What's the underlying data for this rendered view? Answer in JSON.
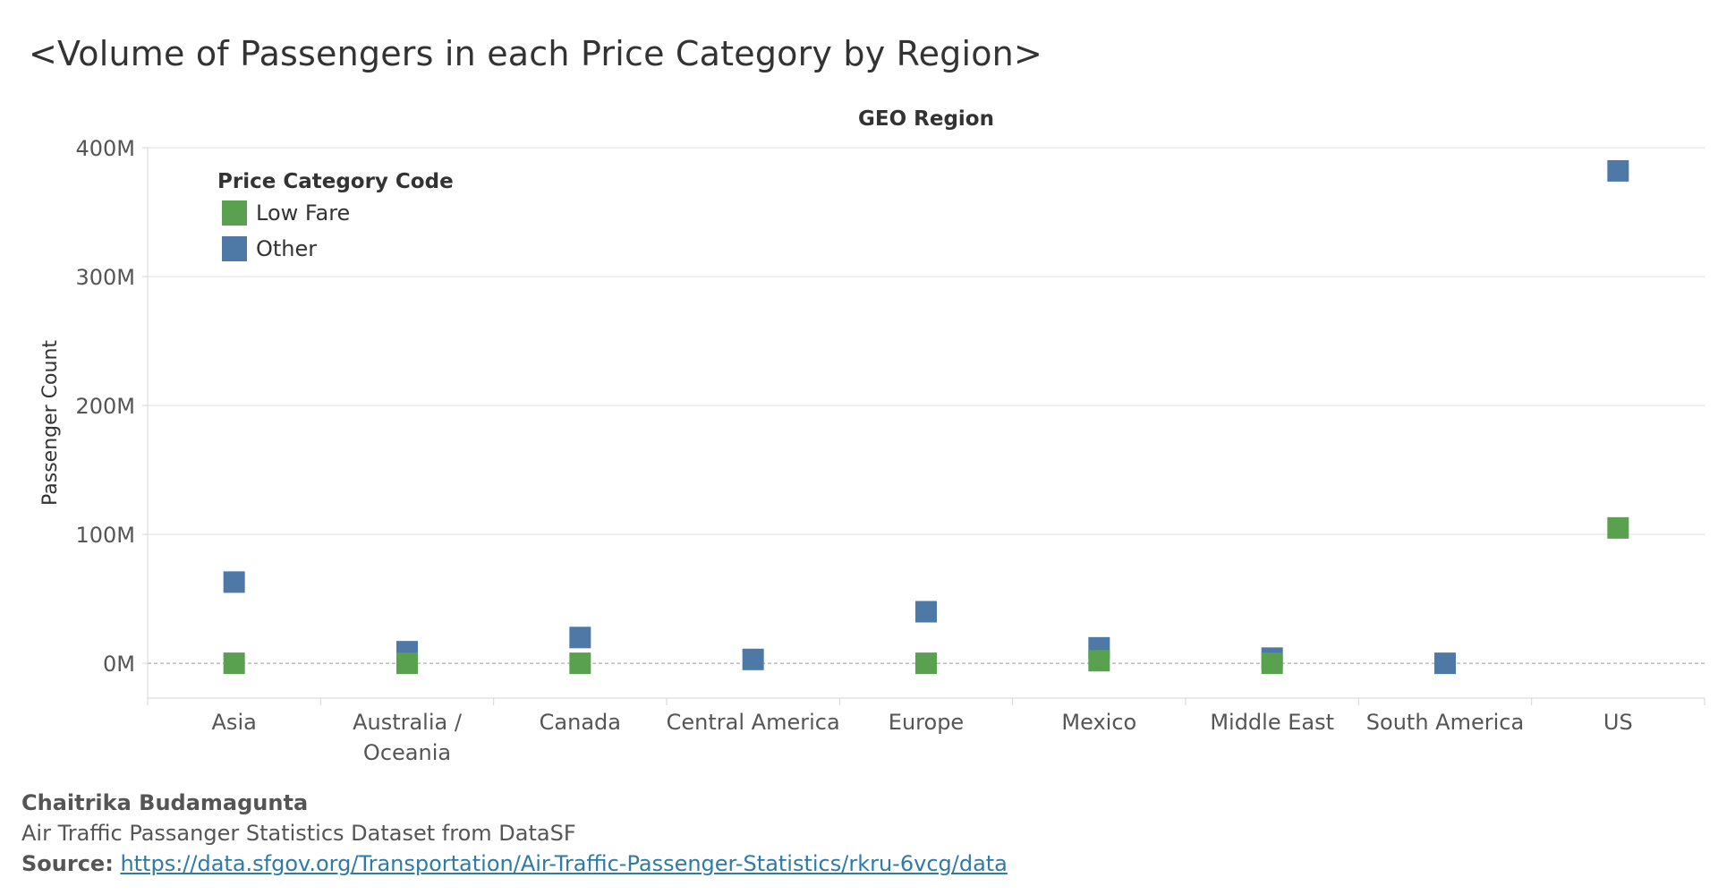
{
  "title": "<Volume of Passengers in each Price Category by Region>",
  "chart_data": {
    "type": "scatter",
    "column_header": "GEO Region",
    "ylabel": "Passenger Count",
    "ylim": [
      -27000000,
      400000000
    ],
    "yticks": [
      0,
      100000000,
      200000000,
      300000000,
      400000000
    ],
    "ytick_labels": [
      "0M",
      "100M",
      "200M",
      "300M",
      "400M"
    ],
    "grid": true,
    "zero_line": "dashed",
    "legend_placement": "top-left",
    "legend_title": "Price Category Code",
    "categories": [
      "Asia",
      "Australia / Oceania",
      "Canada",
      "Central America",
      "Europe",
      "Mexico",
      "Middle East",
      "South America",
      "US"
    ],
    "category_label_lines": [
      [
        "Asia"
      ],
      [
        "Australia /",
        "Oceania"
      ],
      [
        "Canada"
      ],
      [
        "Central America"
      ],
      [
        "Europe"
      ],
      [
        "Mexico"
      ],
      [
        "Middle East"
      ],
      [
        "South America"
      ],
      [
        "US"
      ]
    ],
    "series": [
      {
        "name": "Other",
        "color": "#4e79a7",
        "values": [
          63000000,
          9000000,
          20000000,
          3000000,
          40000000,
          12000000,
          4000000,
          0,
          382000000
        ]
      },
      {
        "name": "Low Fare",
        "color": "#59a14f",
        "values": [
          0,
          0,
          0,
          null,
          0,
          2000000,
          0,
          null,
          105000000
        ]
      }
    ]
  },
  "footer": {
    "author": "Chaitrika Budamagunta",
    "dataset": "Air Traffic Passanger Statistics Dataset from DataSF",
    "source_label": "Source:",
    "source_url": "https://data.sfgov.org/Transportation/Air-Traffic-Passenger-Statistics/rkru-6vcg/data"
  }
}
